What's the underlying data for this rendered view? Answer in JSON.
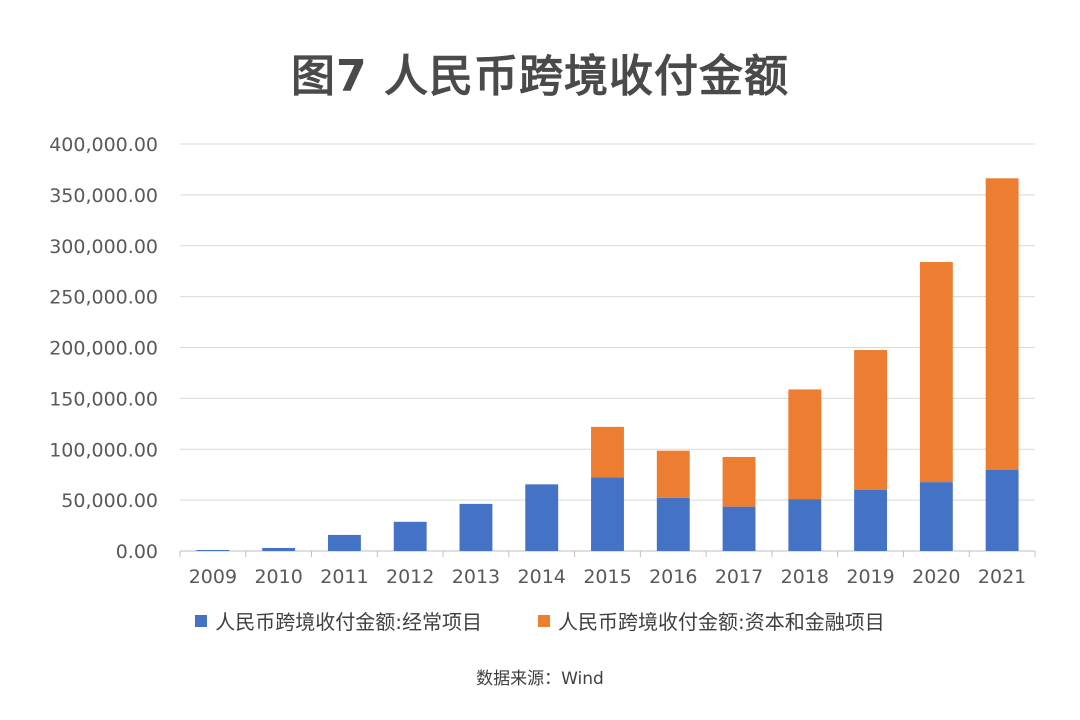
{
  "title": "图7 人民币跨境收付金额",
  "source": "数据来源：Wind",
  "chart_data": {
    "type": "bar",
    "stacked": true,
    "categories": [
      "2009",
      "2010",
      "2011",
      "2012",
      "2013",
      "2014",
      "2015",
      "2016",
      "2017",
      "2018",
      "2019",
      "2020",
      "2021"
    ],
    "series": [
      {
        "name": "人民币跨境收付金额:经常项目",
        "color": "#4472C4",
        "values": [
          1000,
          3000,
          15800,
          28700,
          46300,
          65500,
          72300,
          52300,
          43600,
          51000,
          60000,
          67700,
          79600
        ]
      },
      {
        "name": "人民币跨境收付金额:资本和金融项目",
        "color": "#ED7D31",
        "values": [
          0,
          0,
          0,
          0,
          0,
          0,
          49700,
          46300,
          48800,
          107800,
          137500,
          216300,
          286700
        ]
      }
    ],
    "ylim": [
      0,
      400000
    ],
    "yticks": [
      "0.00",
      "50,000.00",
      "100,000.00",
      "150,000.00",
      "200,000.00",
      "250,000.00",
      "300,000.00",
      "350,000.00",
      "400,000.00"
    ],
    "ytick_values": [
      0,
      50000,
      100000,
      150000,
      200000,
      250000,
      300000,
      350000,
      400000
    ],
    "grid": true,
    "legend_position": "bottom"
  }
}
